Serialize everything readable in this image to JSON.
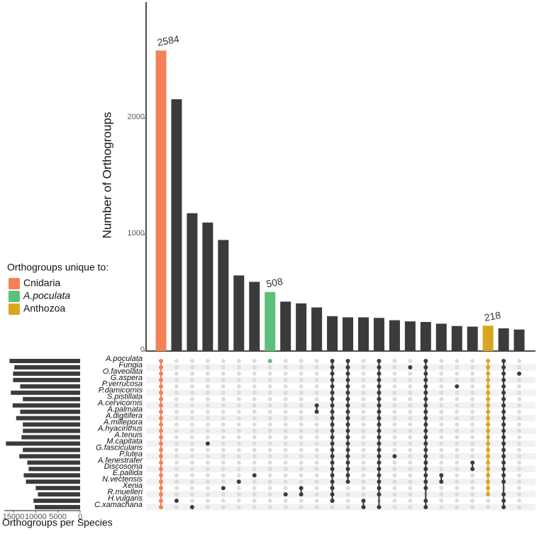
{
  "chart_data": {
    "type": "upset",
    "ylabel": "Number of Orthogroups",
    "ylim": [
      0,
      3000
    ],
    "yticks": [
      0,
      1000,
      2000
    ],
    "values": [
      2584,
      2165,
      1185,
      1105,
      955,
      650,
      595,
      508,
      425,
      410,
      375,
      300,
      290,
      290,
      285,
      265,
      255,
      250,
      235,
      215,
      210,
      218,
      195,
      185
    ],
    "bar_colors": [
      "#f58058",
      "#3b3b3b",
      "#3b3b3b",
      "#3b3b3b",
      "#3b3b3b",
      "#3b3b3b",
      "#3b3b3b",
      "#5cbf7a",
      "#3b3b3b",
      "#3b3b3b",
      "#3b3b3b",
      "#3b3b3b",
      "#3b3b3b",
      "#3b3b3b",
      "#3b3b3b",
      "#3b3b3b",
      "#3b3b3b",
      "#3b3b3b",
      "#3b3b3b",
      "#3b3b3b",
      "#3b3b3b",
      "#daa520",
      "#3b3b3b",
      "#3b3b3b"
    ],
    "labeled": [
      0,
      7,
      21
    ],
    "sets": [
      "A.poculata",
      "Fungia",
      "O.faveolata",
      "G.aspera",
      "P.verrucosa",
      "P.damicornis",
      "S.pistillata",
      "A.cervicornis",
      "A.palmata",
      "A.digitifera",
      "A.millepora",
      "A.hyacinthus",
      "A.tenuis",
      "M.capitata",
      "G.fascicularis",
      "P.lutea",
      "A.fenestrafer",
      "Discosoma",
      "E.pallida",
      "N.vectensis",
      "Xenia",
      "R.muelleri",
      "H.vulgaris",
      "C.xamachana"
    ],
    "set_sizes": [
      15900,
      14800,
      15100,
      15100,
      13500,
      15600,
      12900,
      15200,
      13500,
      14400,
      12900,
      12900,
      13200,
      16700,
      12900,
      13700,
      11900,
      11600,
      12700,
      12200,
      10000,
      9500,
      10500,
      10200
    ],
    "set_xlim": [
      0,
      17000
    ],
    "set_xticks": [
      15000,
      10000,
      5000,
      0
    ],
    "set_xlabel": "Orthogroups per Species",
    "intersections": [
      [
        0,
        1,
        2,
        3,
        4,
        5,
        6,
        7,
        8,
        9,
        10,
        11,
        12,
        13,
        14,
        15,
        16,
        17,
        18,
        19,
        20,
        21,
        22,
        23
      ],
      [
        22
      ],
      [
        23
      ],
      [
        13
      ],
      [
        20
      ],
      [
        19
      ],
      [
        18
      ],
      [
        0
      ],
      [
        21
      ],
      [
        20,
        21
      ],
      [
        7,
        8
      ],
      [
        0,
        1,
        2,
        3,
        4,
        5,
        6,
        7,
        8,
        9,
        10,
        11,
        12,
        13,
        14,
        15,
        16,
        17,
        18,
        19,
        20,
        21,
        22
      ],
      [
        0,
        1,
        2,
        3,
        4,
        5,
        6,
        7,
        8,
        9,
        10,
        11,
        12,
        13,
        14,
        15,
        16,
        17,
        18,
        19
      ],
      [
        22,
        23
      ],
      [
        0,
        1,
        2,
        3,
        4,
        5,
        6,
        7,
        8,
        9,
        10,
        11,
        12,
        13,
        14,
        15,
        16,
        17,
        18,
        19,
        20,
        21,
        23
      ],
      [
        15
      ],
      [
        1
      ],
      [
        0,
        1,
        2,
        3,
        4,
        5,
        6,
        7,
        8,
        9,
        10,
        11,
        12,
        13,
        14,
        15,
        16,
        17,
        18,
        19,
        20,
        22,
        23
      ],
      [
        18,
        19
      ],
      [
        4
      ],
      [
        16,
        17
      ],
      [
        0,
        1,
        2,
        3,
        4,
        5,
        6,
        7,
        8,
        9,
        10,
        11,
        12,
        13,
        14,
        15,
        16,
        17,
        18,
        19,
        20,
        21
      ],
      [
        0,
        1,
        2,
        3,
        4,
        5,
        6,
        7,
        8,
        9,
        10,
        11,
        12,
        13,
        14,
        15,
        16,
        17,
        18,
        19,
        21,
        22,
        23
      ],
      [
        2
      ]
    ],
    "legend": {
      "title": "Orthogroups unique to:",
      "items": [
        {
          "name": "Cnidaria",
          "color": "#f58058"
        },
        {
          "name": "A.poculata",
          "color": "#5cbf7a"
        },
        {
          "name": "Anthozoa",
          "color": "#daa520"
        }
      ]
    }
  }
}
